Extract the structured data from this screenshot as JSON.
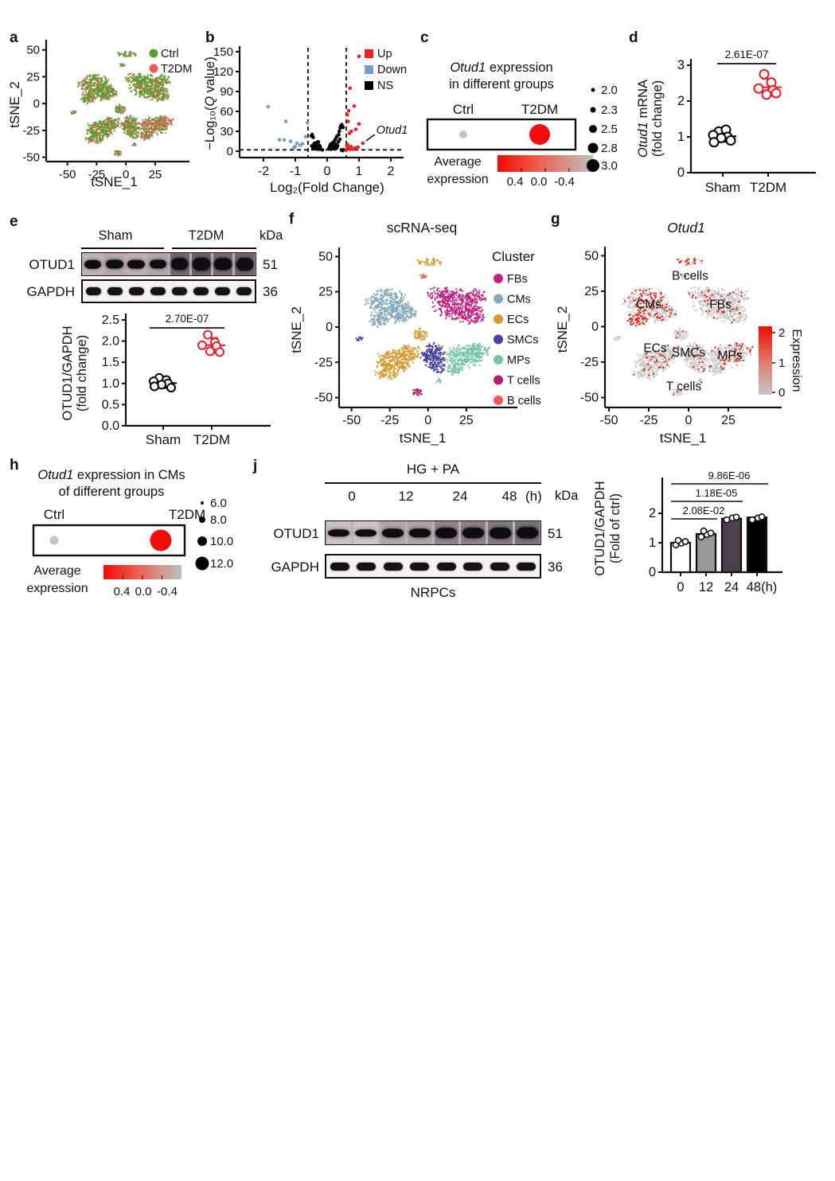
{
  "panel_labels": {
    "a": "a",
    "b": "b",
    "c": "c",
    "d": "d",
    "e": "e",
    "f": "f",
    "g": "g",
    "h": "h",
    "j": "j"
  },
  "chart_data": [
    {
      "panel": "a",
      "type": "scatter",
      "variant": "tsne-groups",
      "xlabel": "tSNE_1",
      "ylabel": "tSNE_2",
      "xticks": [
        -50,
        -25,
        0,
        25
      ],
      "yticks": [
        50,
        25,
        0,
        -25,
        -50
      ],
      "xlim": [
        -60,
        40
      ],
      "ylim": [
        -57,
        55
      ],
      "legend": [
        {
          "label": "Ctrl",
          "color": "#5b9c2e"
        },
        {
          "label": "T2DM",
          "color": "#ef5b5b"
        }
      ],
      "salmon_prob": {
        "CMs": 0.18,
        "FBs": 0.22,
        "ECs": 0.2,
        "SMCs": 0.25,
        "MPs": 0.5,
        "T cells": 0.3,
        "B cells": 0.3
      }
    },
    {
      "panel": "b",
      "type": "scatter",
      "variant": "volcano",
      "xlabel": "Log₂(Fold Change)",
      "ylabel_parts": [
        [
          "−Log₁₀(",
          false
        ],
        [
          "Q",
          true
        ],
        [
          " value)",
          false
        ]
      ],
      "xticks": [
        -2,
        -1,
        0,
        1,
        2
      ],
      "yticks": [
        0,
        30,
        60,
        90,
        120,
        150
      ],
      "xlim": [
        -2.35,
        2.35
      ],
      "ylim": [
        0,
        150
      ],
      "thresholds": {
        "vlines": [
          -0.6,
          0.6
        ],
        "hline": 2
      },
      "legend": [
        {
          "label": "Up",
          "color": "#ed2024"
        },
        {
          "label": "Down",
          "color": "#7b9cc4"
        },
        {
          "label": "NS",
          "color": "#000000"
        }
      ],
      "annotation": {
        "text": "Otud1",
        "x": 1.12,
        "y": 12
      },
      "series": [
        {
          "name": "NS",
          "color": "#000000",
          "points": [
            [
              -0.5,
              23
            ],
            [
              -0.47,
              25
            ],
            [
              -0.44,
              21
            ],
            [
              -0.4,
              12
            ],
            [
              -0.42,
              10
            ],
            [
              -0.35,
              8
            ],
            [
              -0.48,
              8
            ],
            [
              -0.45,
              5
            ],
            [
              -0.38,
              6
            ],
            [
              -0.34,
              4
            ],
            [
              -0.3,
              3
            ],
            [
              -0.27,
              5
            ],
            [
              -0.25,
              9
            ],
            [
              -0.33,
              13
            ],
            [
              -0.28,
              14
            ],
            [
              -0.22,
              7
            ],
            [
              0.1,
              5
            ],
            [
              0.12,
              3
            ],
            [
              0.16,
              8
            ],
            [
              0.2,
              12
            ],
            [
              0.22,
              15
            ],
            [
              0.26,
              18
            ],
            [
              0.3,
              22
            ],
            [
              0.28,
              10
            ],
            [
              0.33,
              8
            ],
            [
              0.36,
              25
            ],
            [
              0.38,
              30
            ],
            [
              0.41,
              35
            ],
            [
              0.43,
              38
            ],
            [
              0.35,
              14
            ],
            [
              0.3,
              5
            ],
            [
              0.2,
              4
            ],
            [
              0.15,
              12
            ],
            [
              0.45,
              2
            ],
            [
              0.4,
              18
            ],
            [
              0.18,
              7
            ],
            [
              0.1,
              10
            ],
            [
              0.24,
              6
            ],
            [
              0.05,
              4
            ],
            [
              0.08,
              7
            ],
            [
              0.48,
              1
            ],
            [
              0.52,
              2
            ],
            [
              0.5,
              36
            ],
            [
              0.46,
              40
            ],
            [
              -0.2,
              3
            ],
            [
              -0.15,
              2
            ]
          ]
        },
        {
          "name": "Down",
          "color": "#7b9cc4",
          "points": [
            [
              -1.85,
              67
            ],
            [
              -1.3,
              45
            ],
            [
              -0.62,
              43
            ],
            [
              -1.5,
              17
            ],
            [
              -1.35,
              17
            ],
            [
              -1.15,
              15
            ],
            [
              -0.95,
              12
            ],
            [
              -1.0,
              7
            ],
            [
              -0.68,
              22
            ],
            [
              -0.78,
              11
            ],
            [
              -0.85,
              9
            ],
            [
              -1.05,
              5
            ]
          ]
        },
        {
          "name": "Up",
          "color": "#ed2024",
          "points": [
            [
              1.0,
              143
            ],
            [
              0.72,
              95
            ],
            [
              0.85,
              68
            ],
            [
              0.68,
              61
            ],
            [
              0.63,
              55
            ],
            [
              0.66,
              45
            ],
            [
              1.0,
              41
            ],
            [
              0.9,
              33
            ],
            [
              0.76,
              30
            ],
            [
              0.7,
              27
            ],
            [
              0.62,
              8
            ],
            [
              0.66,
              5
            ],
            [
              0.72,
              3
            ],
            [
              0.8,
              3
            ],
            [
              0.88,
              5
            ],
            [
              0.97,
              6
            ],
            [
              0.6,
              2
            ],
            [
              0.64,
              10
            ],
            [
              0.75,
              7
            ],
            [
              1.12,
              12
            ]
          ]
        }
      ]
    },
    {
      "panel": "c",
      "type": "dotplot",
      "title_italic": "Otud1",
      "title_rest": " expression",
      "title_line2": "in different groups",
      "groups": [
        {
          "label": "Ctrl",
          "size": 2.0,
          "avg_expression": -0.4,
          "color": "#c4c4c4"
        },
        {
          "label": "T2DM",
          "size": 3.0,
          "avg_expression": 0.4,
          "color": "#f30d0d"
        }
      ],
      "size_legend": [
        "2.0",
        "2.3",
        "2.5",
        "2.8",
        "3.0"
      ],
      "colorbar": {
        "label_line1": "Average",
        "label_line2": "expression",
        "ticks": [
          "0.4",
          "0.0",
          "-0.4"
        ],
        "color_left": "#f50a00",
        "color_right": "#bdbdbd"
      }
    },
    {
      "panel": "d",
      "type": "scatter",
      "variant": "group-compare",
      "ylabel_line1_parts": [
        [
          "Otud1",
          true
        ],
        [
          " mRNA",
          false
        ]
      ],
      "ylabel_line2": "(fold change)",
      "yticks": [
        0,
        1,
        2,
        3
      ],
      "ylim": [
        0,
        3
      ],
      "pvalue": "2.61E-07",
      "groups": [
        {
          "label": "Sham",
          "color": "#000000",
          "values": [
            1.15,
            1.2,
            1.05,
            1.0,
            0.97,
            0.9,
            0.85
          ]
        },
        {
          "label": "T2DM",
          "color": "#ed1c24",
          "values": [
            2.75,
            2.52,
            2.35,
            2.3,
            2.18,
            2.22
          ]
        }
      ]
    },
    {
      "panel": "e_blot",
      "type": "western-blot",
      "group_labels": [
        "Sham",
        "T2DM"
      ],
      "kda_header": "kDa",
      "rows": [
        {
          "label": "OTUD1",
          "kda": "51",
          "style": "noisy",
          "band": [
            0.5,
            0.56,
            0.52,
            0.58,
            0.95,
            1.0,
            0.93,
            0.97
          ]
        },
        {
          "label": "GAPDH",
          "kda": "36",
          "style": "clean",
          "band": [
            0.85,
            0.85,
            0.85,
            0.85,
            0.85,
            0.85,
            0.85,
            0.85
          ]
        }
      ]
    },
    {
      "panel": "e_plot",
      "type": "scatter",
      "variant": "group-compare",
      "ylabel_line1": "OTUD1/GAPDH",
      "ylabel_line2": "(fold change)",
      "yticks": [
        "0.0",
        "0.5",
        "1.0",
        "1.5",
        "2.0",
        "2.5"
      ],
      "ylim": [
        0,
        2.5
      ],
      "pvalue": "2.70E-07",
      "groups": [
        {
          "label": "Sham",
          "color": "#000000",
          "values": [
            1.13,
            1.08,
            1.05,
            1.0,
            0.97,
            0.9,
            0.93
          ]
        },
        {
          "label": "T2DM",
          "color": "#ed1c24",
          "values": [
            2.15,
            1.97,
            1.9,
            1.88,
            1.76,
            1.74
          ]
        }
      ]
    },
    {
      "panel": "f",
      "type": "scatter",
      "variant": "tsne-clusters",
      "title": "scRNA-seq",
      "xlabel": "tSNE_1",
      "ylabel": "tSNE_2",
      "xticks": [
        -50,
        -25,
        0,
        25
      ],
      "yticks": [
        50,
        25,
        0,
        -25,
        -50
      ],
      "xlim": [
        -55,
        48
      ],
      "ylim": [
        -57,
        53
      ],
      "legend_title": "Cluster",
      "clusters": [
        {
          "name": "FBs",
          "color": "#c02383"
        },
        {
          "name": "CMs",
          "color": "#85a8bb"
        },
        {
          "name": "ECs",
          "color": "#d79a33"
        },
        {
          "name": "SMCs",
          "color": "#4740a0"
        },
        {
          "name": "MPs",
          "color": "#74c7a2"
        },
        {
          "name": "T cells",
          "color": "#b01d74"
        },
        {
          "name": "B cells",
          "color": "#f05a57"
        }
      ],
      "blobs": [
        {
          "cluster": "CMs",
          "parts": [
            [
              -27,
              17,
              13,
              10,
              300,
              0.25
            ],
            [
              -17,
              10,
              9,
              7,
              160,
              0.2
            ],
            [
              -32,
              5,
              7,
              5,
              90,
              0.5
            ]
          ]
        },
        {
          "cluster": "FBs",
          "parts": [
            [
              18,
              16,
              14,
              10,
              340
            ],
            [
              28,
              9,
              9,
              7,
              140
            ],
            [
              8,
              23,
              8,
              5,
              80
            ],
            [
              31,
              22,
              7,
              5,
              70
            ]
          ]
        },
        {
          "cluster": "ECs",
          "parts": [
            [
              1,
              46,
              8,
              2.5,
              45,
              0.5
            ],
            [
              -22,
              -24,
              11,
              8,
              260
            ],
            [
              -12,
              -18,
              7,
              6,
              100
            ],
            [
              -27,
              -33,
              7,
              4,
              70
            ],
            [
              -5,
              -5,
              5,
              4,
              60
            ]
          ]
        },
        {
          "cluster": "SMCs",
          "parts": [
            [
              3,
              -20,
              8,
              8,
              200
            ],
            [
              6,
              -29,
              5,
              4,
              50
            ],
            [
              -45,
              -8,
              2.5,
              1.5,
              12
            ]
          ]
        },
        {
          "cluster": "MPs",
          "parts": [
            [
              24,
              -21,
              12,
              8,
              260
            ],
            [
              33,
              -17,
              8,
              5,
              90
            ],
            [
              17,
              -30,
              6,
              4,
              60
            ],
            [
              7,
              -38,
              2,
              1.5,
              10
            ]
          ]
        },
        {
          "cluster": "T cells",
          "parts": [
            [
              -7,
              -46,
              3,
              2.5,
              30
            ]
          ]
        },
        {
          "cluster": "B cells",
          "parts": [
            [
              -3,
              36,
              2.5,
              1.5,
              14
            ]
          ]
        }
      ]
    },
    {
      "panel": "g",
      "type": "scatter",
      "variant": "tsne-expression",
      "title": "Otud1",
      "xlabel": "tSNE_1",
      "ylabel": "tSNE_2",
      "xticks": [
        -50,
        -25,
        0,
        25
      ],
      "yticks": [
        50,
        25,
        0,
        -25,
        -50
      ],
      "xlim": [
        -55,
        48
      ],
      "ylim": [
        -57,
        53
      ],
      "base_color": "#c9c9c9",
      "high_color": "#e0301e",
      "red_prob": {
        "CMs": 0.3,
        "FBs": 0.1,
        "ECs": 0.07,
        "SMCs": 0.06,
        "MPs": 0.1,
        "T cells": 0.05,
        "B cells": 0.45
      },
      "labels": [
        {
          "text": "B cells",
          "x": 1,
          "y": 33
        },
        {
          "text": "CMs",
          "x": -25,
          "y": 13
        },
        {
          "text": "FBs",
          "x": 20,
          "y": 13
        },
        {
          "text": "ECs",
          "x": -21,
          "y": -18
        },
        {
          "text": "SMCs",
          "x": 0,
          "y": -21
        },
        {
          "text": "MPs",
          "x": 26,
          "y": -23
        },
        {
          "text": "T cells",
          "x": -3,
          "y": -45
        }
      ],
      "colorbar": {
        "label": "Expression",
        "ticks": [
          "2",
          "1",
          "0"
        ]
      }
    },
    {
      "panel": "h",
      "type": "dotplot",
      "title_italic": "Otud1",
      "title_rest": " expression in CMs",
      "title_line2": "of different groups",
      "groups": [
        {
          "label": "Ctrl",
          "size": 6.0,
          "avg_expression": -0.4,
          "color": "#c4c4c4"
        },
        {
          "label": "T2DM",
          "size": 12.0,
          "avg_expression": 0.4,
          "color": "#f30d0d"
        }
      ],
      "size_legend": [
        "6.0",
        "8.0",
        "10.0",
        "12.0"
      ],
      "colorbar": {
        "label_line1": "Average",
        "label_line2": "expression",
        "ticks": [
          "0.4",
          "0.0",
          "-0.4"
        ],
        "color_left": "#f50a00",
        "color_right": "#bdbdbd"
      }
    },
    {
      "panel": "j_blot",
      "type": "western-blot",
      "title": "HG + PA",
      "time_labels": [
        "0",
        "12",
        "24",
        "48"
      ],
      "time_unit": "(h)",
      "kda_header": "kDa",
      "cell_label": "NRPCs",
      "rows": [
        {
          "label": "OTUD1",
          "kda": "51",
          "style": "noisy",
          "band": [
            0.42,
            0.4,
            0.58,
            0.6,
            0.78,
            0.8,
            0.85,
            0.9
          ]
        },
        {
          "label": "GAPDH",
          "kda": "36",
          "style": "clean",
          "band": [
            0.85,
            0.85,
            0.85,
            0.85,
            0.85,
            0.85,
            0.85,
            0.85
          ]
        }
      ]
    },
    {
      "panel": "j_bar",
      "type": "bar",
      "categories": [
        "0",
        "12",
        "24",
        "48(h)"
      ],
      "values": [
        1.0,
        1.3,
        1.82,
        1.86
      ],
      "bar_colors": [
        "#ffffff",
        "#999999",
        "#4a3f4a",
        "#000000"
      ],
      "dots": [
        [
          0.93,
          0.99,
          1.04,
          1.08
        ],
        [
          1.2,
          1.28,
          1.33,
          1.4
        ],
        [
          1.78,
          1.84,
          1.87
        ],
        [
          1.78,
          1.84,
          1.88
        ]
      ],
      "ylabel_line1": "OTUD1/GAPDH",
      "ylabel_line2": "(Fold of ctrl)",
      "yticks": [
        0,
        1,
        2
      ],
      "ylim": [
        0,
        2.6
      ],
      "significance": [
        {
          "from": "0",
          "to": "12",
          "p": "2.08E-02"
        },
        {
          "from": "0",
          "to": "24",
          "p": "1.18E-05"
        },
        {
          "from": "0",
          "to": "48",
          "p": "9.86E-06"
        }
      ]
    }
  ]
}
